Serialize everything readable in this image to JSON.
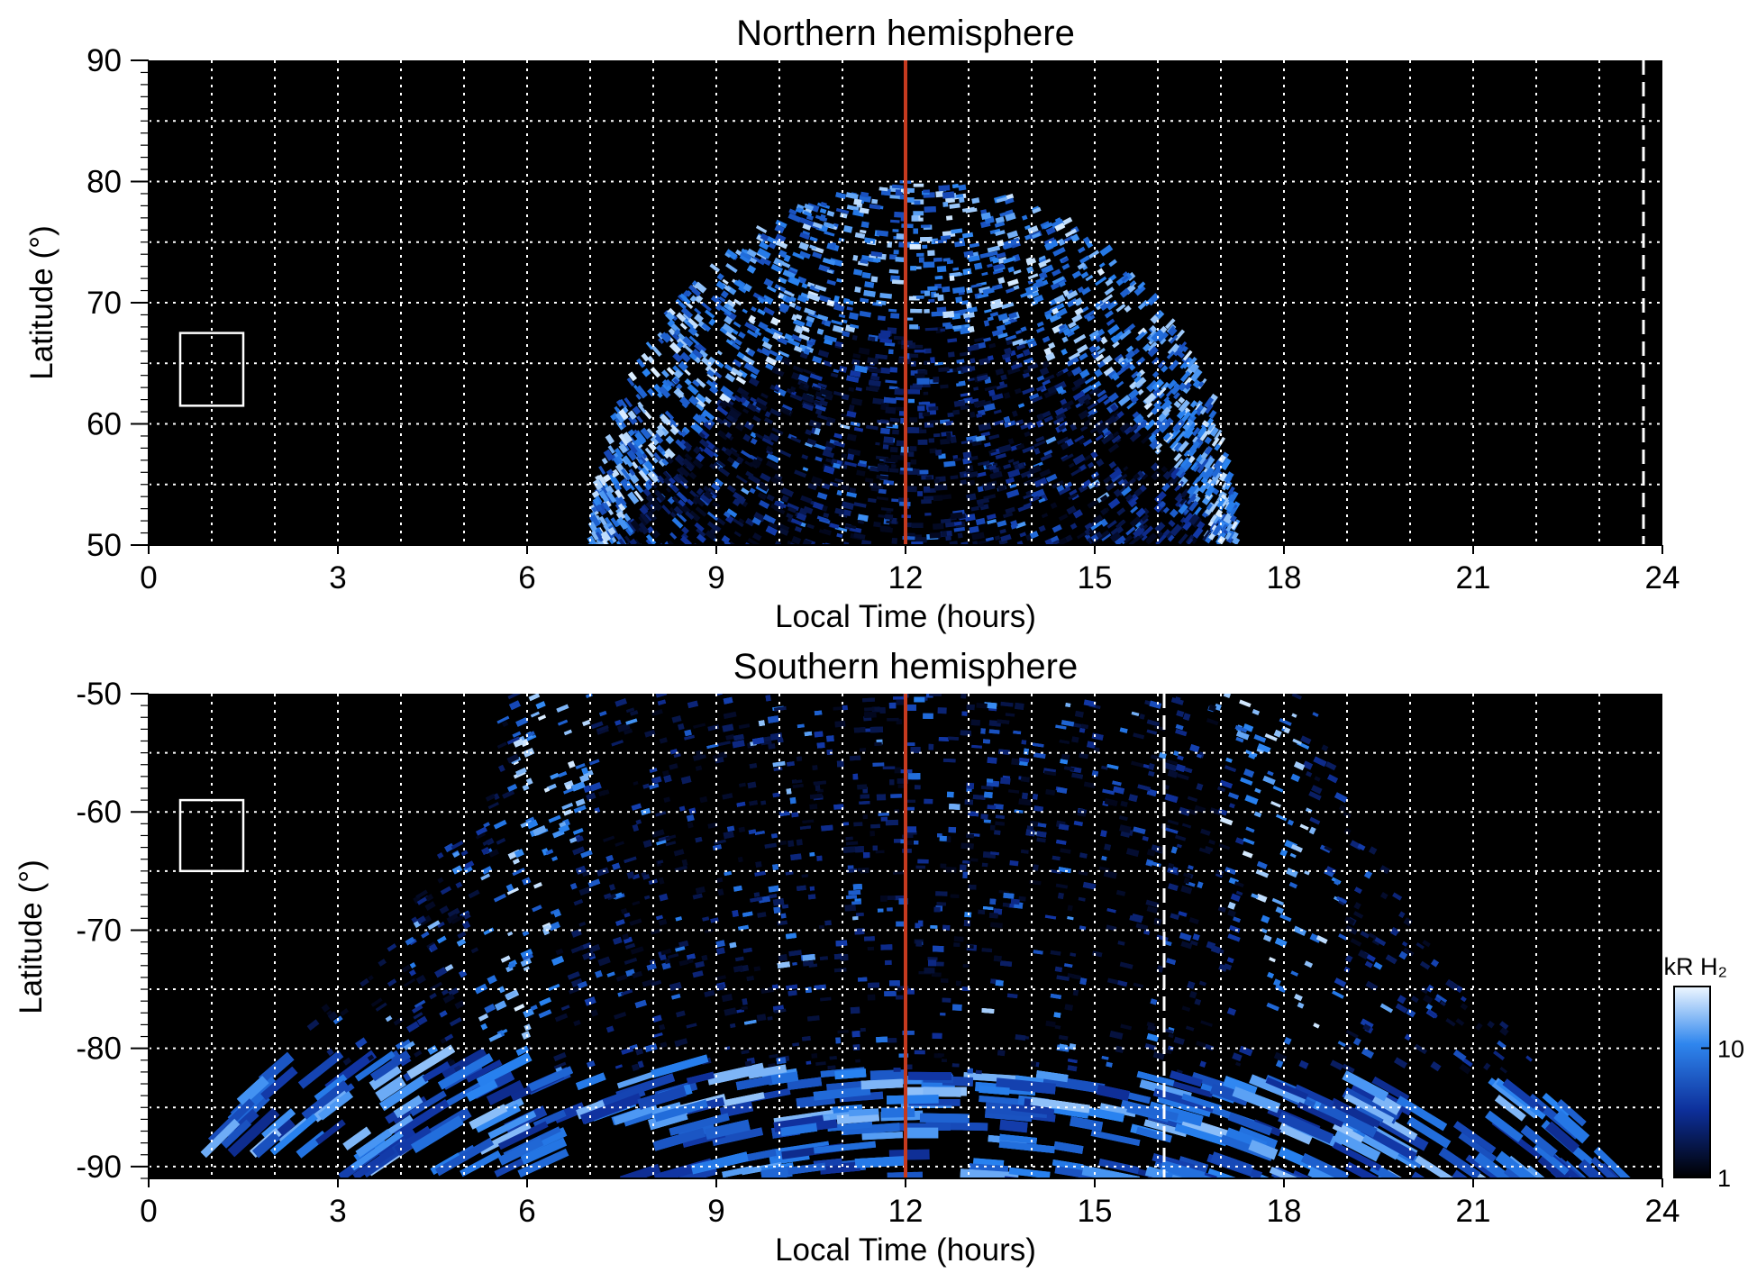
{
  "colors": {
    "background": "#000000",
    "emission_dark": "#02061a",
    "emission_mid": "#1a5fd8",
    "emission_bright": "#dceeff",
    "noon_line": "#c53a1f",
    "grid": "#ffffff"
  },
  "chart_data": [
    {
      "type": "heatmap",
      "title": "Northern hemisphere",
      "xlabel": "Local Time (hours)",
      "ylabel": "Latitude (°)",
      "xlim": [
        0,
        24
      ],
      "ylim": [
        50,
        90
      ],
      "xticks": [
        "0",
        "3",
        "6",
        "9",
        "12",
        "15",
        "18",
        "21",
        "24"
      ],
      "yticks": [
        "50",
        "60",
        "70",
        "80",
        "90"
      ],
      "grid": true,
      "noon_line_hours": 12,
      "dashed_marker_hours": 23.7,
      "reference_box": {
        "local_time": [
          0.5,
          1.5
        ],
        "latitude": [
          61.5,
          67.5
        ]
      },
      "coverage": {
        "local_time": [
          7.0,
          17.2
        ],
        "max_latitude": 80
      }
    },
    {
      "type": "heatmap",
      "title": "Southern hemisphere",
      "xlabel": "Local Time (hours)",
      "ylabel": "Latitude (°)",
      "xlim": [
        0,
        24
      ],
      "ylim": [
        -91,
        -50
      ],
      "xticks": [
        "0",
        "3",
        "6",
        "9",
        "12",
        "15",
        "18",
        "21",
        "24"
      ],
      "yticks": [
        "-50",
        "-60",
        "-70",
        "-80",
        "-90"
      ],
      "grid": true,
      "noon_line_hours": 12,
      "dashed_marker_hours": 16.1,
      "reference_box": {
        "local_time": [
          0.5,
          1.5
        ],
        "latitude": [
          -65,
          -59
        ]
      },
      "colorbar": {
        "title": "kR H₂",
        "scale": "log",
        "range": [
          1,
          30
        ],
        "ticks": [
          "1",
          "10"
        ]
      }
    }
  ]
}
